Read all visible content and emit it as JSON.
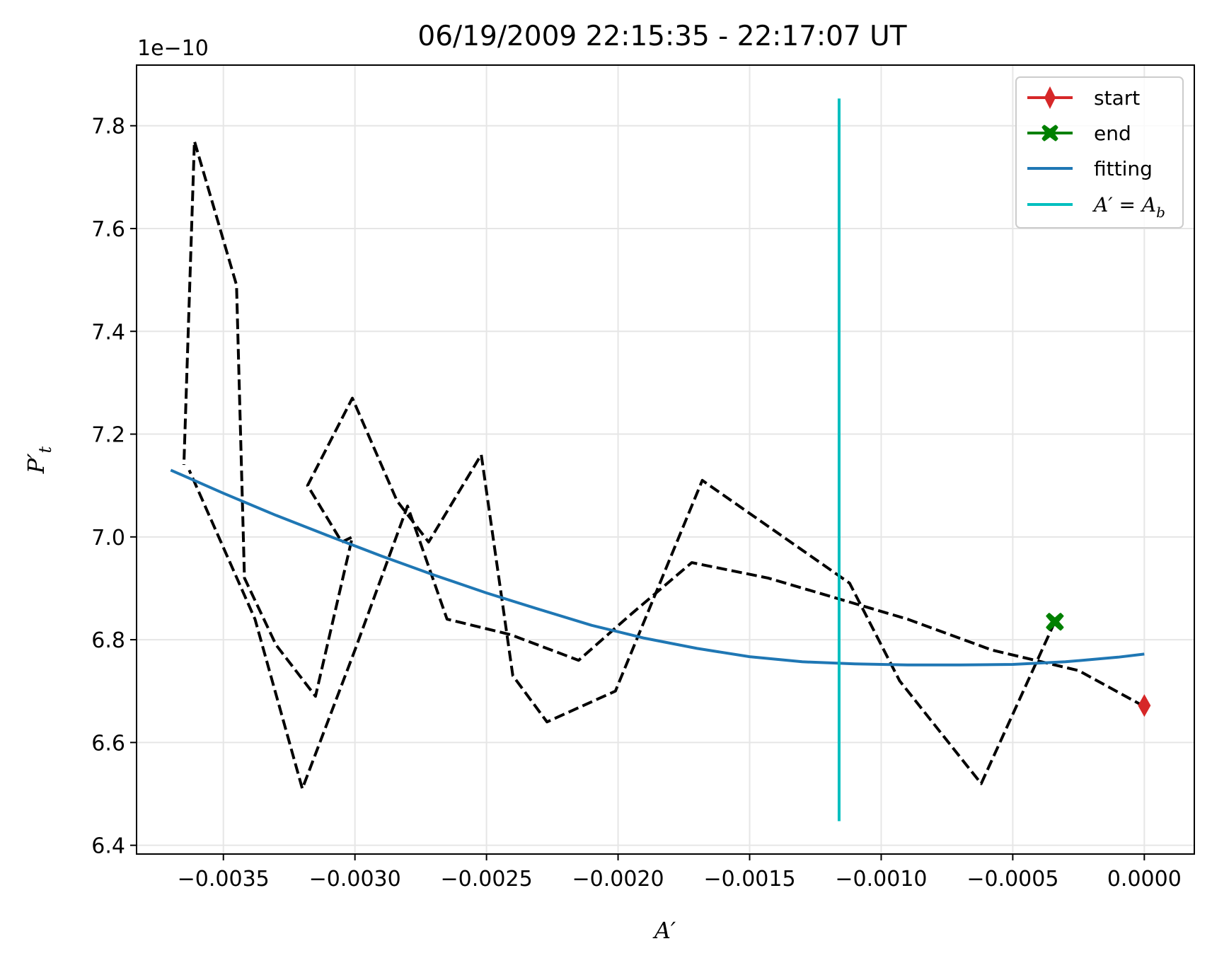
{
  "chart_data": {
    "type": "line",
    "title": "06/19/2009 22:15:35 - 22:17:07 UT",
    "xlabel": "A′",
    "ylabel": "P′",
    "ylabel_subscript": "t",
    "y_offset_text": "1e−10",
    "xlim": [
      -0.00383,
      0.00019
    ],
    "ylim": [
      6.383,
      7.918
    ],
    "grid": true,
    "legend_position": "upper right",
    "x_ticks": [
      -0.0035,
      -0.003,
      -0.0025,
      -0.002,
      -0.0015,
      -0.001,
      -0.0005,
      0.0
    ],
    "x_tick_labels": [
      "−0.0035",
      "−0.0030",
      "−0.0025",
      "−0.0020",
      "−0.0015",
      "−0.0010",
      "−0.0005",
      "0.0000"
    ],
    "y_ticks": [
      6.4,
      6.6,
      6.8,
      7.0,
      7.2,
      7.4,
      7.6,
      7.8
    ],
    "y_tick_labels": [
      "6.4",
      "6.6",
      "6.8",
      "7.0",
      "7.2",
      "7.4",
      "7.6",
      "7.8"
    ],
    "series": [
      {
        "style": "dashed",
        "color": "#000000",
        "x": [
          0.0,
          -0.00025,
          -0.00058,
          -0.0009,
          -0.00143,
          -0.00172,
          -0.00195,
          -0.00215,
          -0.00241,
          -0.00265,
          -0.0028,
          -0.003,
          -0.0032,
          -0.00338,
          -0.00363
        ],
        "y": [
          6.67,
          6.74,
          6.78,
          6.84,
          6.92,
          6.95,
          6.85,
          6.76,
          6.81,
          6.84,
          7.06,
          6.78,
          6.51,
          6.84,
          7.13
        ]
      },
      {
        "style": "dashed",
        "color": "#000000",
        "x": [
          -0.00034,
          -0.00062,
          -0.00093,
          -0.00112,
          -0.00168,
          -0.00201,
          -0.00227,
          -0.0024,
          -0.00252,
          -0.00272,
          -0.00284,
          -0.00301,
          -0.00318,
          -0.00305,
          -0.00301,
          -0.00315,
          -0.0033,
          -0.00342,
          -0.00345,
          -0.00361,
          -0.00365
        ],
        "y": [
          6.835,
          6.52,
          6.72,
          6.91,
          7.11,
          6.7,
          6.64,
          6.73,
          7.16,
          6.99,
          7.07,
          7.27,
          7.1,
          6.99,
          7.0,
          6.69,
          6.79,
          6.92,
          7.49,
          7.77,
          7.14
        ]
      },
      {
        "name": "start",
        "color": "#d62728",
        "marker": "diamond",
        "x": [
          0.0
        ],
        "y": [
          6.672
        ]
      },
      {
        "name": "end",
        "color": "#008000",
        "marker": "X",
        "x": [
          -0.00034
        ],
        "y": [
          6.835
        ]
      },
      {
        "name": "fitting",
        "color": "#1f77b4",
        "style": "solid",
        "x": [
          -0.0037,
          -0.0035,
          -0.0033,
          -0.0031,
          -0.0029,
          -0.0027,
          -0.0025,
          -0.0023,
          -0.0021,
          -0.0019,
          -0.0017,
          -0.0015,
          -0.0013,
          -0.0011,
          -0.0009,
          -0.0007,
          -0.0005,
          -0.0003,
          -0.0001,
          0.0
        ],
        "y": [
          7.13,
          7.085,
          7.042,
          7.002,
          6.963,
          6.926,
          6.891,
          6.859,
          6.828,
          6.803,
          6.783,
          6.767,
          6.757,
          6.753,
          6.751,
          6.751,
          6.752,
          6.757,
          6.766,
          6.772
        ]
      },
      {
        "name": "A′ = A_b",
        "color": "#00bfbf",
        "style": "vertical",
        "x": [
          -0.00116,
          -0.00116
        ],
        "y": [
          6.447,
          7.853
        ]
      }
    ]
  },
  "legend": {
    "start_label": "start",
    "end_label": "end",
    "fitting_label": "fitting",
    "ab_label_main": "A′ = A",
    "ab_label_sub": "b"
  }
}
